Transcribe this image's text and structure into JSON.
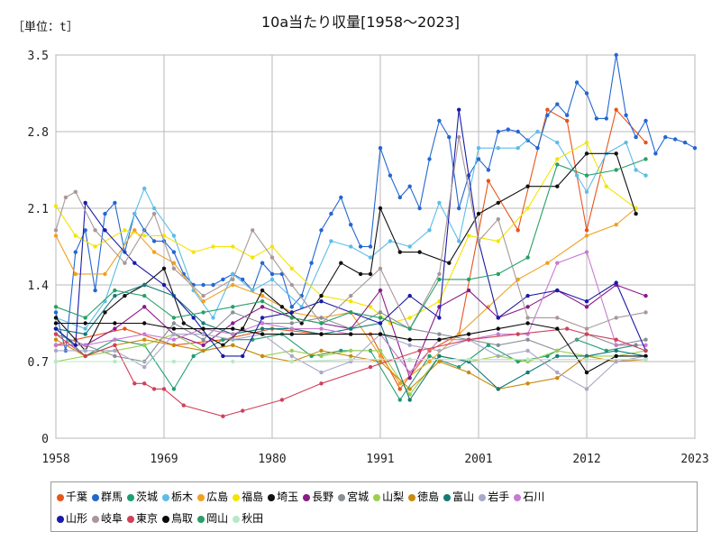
{
  "chart_data": {
    "type": "line",
    "title": "10a当たり収量[1958～2023]",
    "unit_label": "［単位：t］",
    "xlim": [
      1958,
      2023
    ],
    "ylim": [
      0,
      3.5
    ],
    "x_ticks": [
      1958,
      1969,
      1980,
      1991,
      2001,
      2012,
      2023
    ],
    "y_ticks": [
      0,
      0.7,
      1.4,
      2.1,
      2.8,
      3.5
    ],
    "y_tick_labels": [
      "0",
      "0.7",
      "1.4",
      "2.1",
      "2.8",
      "3.5"
    ],
    "grid": true,
    "legend_position": "bottom",
    "series": [
      {
        "name": "千葉",
        "color": "#e8541c",
        "x": [
          1958,
          1960,
          1965,
          1970,
          1975,
          1980,
          1985,
          1990,
          1993,
          1996,
          1999,
          2002,
          2005,
          2008,
          2010,
          2012,
          2015,
          2018
        ],
        "y": [
          0.85,
          0.9,
          1.0,
          0.85,
          0.9,
          1.0,
          0.95,
          0.95,
          0.45,
          0.8,
          0.95,
          2.35,
          1.9,
          3.0,
          2.9,
          1.9,
          3.0,
          2.7
        ]
      },
      {
        "name": "群馬",
        "color": "#2466d2",
        "x": [
          1958,
          1959,
          1960,
          1961,
          1962,
          1963,
          1964,
          1965,
          1966,
          1967,
          1968,
          1969,
          1970,
          1971,
          1972,
          1973,
          1974,
          1975,
          1976,
          1977,
          1978,
          1979,
          1980,
          1981,
          1982,
          1983,
          1984,
          1985,
          1986,
          1987,
          1988,
          1989,
          1990,
          1991,
          1992,
          1993,
          1994,
          1995,
          1996,
          1997,
          1998,
          1999,
          2000,
          2001,
          2002,
          2003,
          2004,
          2005,
          2006,
          2007,
          2008,
          2009,
          2010,
          2011,
          2012,
          2013,
          2014,
          2015,
          2016,
          2017,
          2018,
          2019,
          2020,
          2021,
          2022,
          2023
        ],
        "y": [
          1.15,
          0.8,
          1.7,
          1.9,
          1.35,
          2.05,
          2.15,
          1.7,
          2.05,
          1.9,
          1.8,
          1.8,
          1.7,
          1.5,
          1.4,
          1.4,
          1.4,
          1.45,
          1.5,
          1.45,
          1.35,
          1.6,
          1.5,
          1.5,
          1.2,
          1.3,
          1.6,
          1.9,
          2.05,
          2.2,
          1.95,
          1.75,
          1.75,
          2.65,
          2.4,
          2.2,
          2.3,
          2.1,
          2.55,
          2.9,
          2.75,
          2.1,
          2.4,
          2.55,
          2.45,
          2.8,
          2.82,
          2.8,
          2.72,
          2.65,
          2.95,
          3.05,
          2.95,
          3.25,
          3.15,
          2.92,
          2.92,
          3.5,
          2.95,
          2.75,
          2.9,
          2.6,
          2.75,
          2.73,
          2.7,
          2.65
        ]
      },
      {
        "name": "茨城",
        "color": "#1f9e72",
        "x": [
          1958,
          1961,
          1964,
          1967,
          1970,
          1972,
          1975,
          1978,
          1981,
          1984,
          1987,
          1990,
          1993,
          1996,
          1999,
          2002,
          2005,
          2008,
          2011,
          2014,
          2017
        ],
        "y": [
          1.0,
          0.75,
          0.9,
          0.85,
          0.45,
          0.75,
          0.9,
          0.9,
          0.95,
          0.75,
          0.8,
          0.8,
          0.35,
          0.75,
          0.65,
          0.85,
          0.7,
          0.75,
          0.9,
          0.8,
          0.85
        ]
      },
      {
        "name": "栃木",
        "color": "#5cbde8",
        "x": [
          1958,
          1961,
          1963,
          1966,
          1967,
          1968,
          1970,
          1972,
          1974,
          1976,
          1978,
          1980,
          1983,
          1986,
          1988,
          1990,
          1992,
          1994,
          1996,
          1997,
          1999,
          2001,
          2003,
          2005,
          2007,
          2009,
          2011,
          2012,
          2014,
          2016,
          2017,
          2018
        ],
        "y": [
          1.1,
          1.0,
          1.25,
          2.05,
          2.28,
          2.1,
          1.85,
          1.35,
          1.1,
          1.5,
          1.35,
          1.45,
          1.2,
          1.8,
          1.75,
          1.65,
          1.8,
          1.75,
          1.9,
          2.15,
          1.8,
          2.65,
          2.65,
          2.65,
          2.8,
          2.7,
          2.4,
          2.25,
          2.6,
          2.7,
          2.45,
          2.4
        ]
      },
      {
        "name": "広島",
        "color": "#f0a020",
        "x": [
          1958,
          1960,
          1963,
          1966,
          1968,
          1970,
          1973,
          1976,
          1979,
          1982,
          1985,
          1988,
          1991,
          1993,
          1996,
          1999,
          2002,
          2005,
          2008,
          2012,
          2015,
          2017
        ],
        "y": [
          1.85,
          1.5,
          1.5,
          1.9,
          1.7,
          1.6,
          1.25,
          1.4,
          1.3,
          1.15,
          1.1,
          1.15,
          0.75,
          0.5,
          0.7,
          0.95,
          1.2,
          1.45,
          1.6,
          1.85,
          1.95,
          2.1
        ]
      },
      {
        "name": "福島",
        "color": "#f5e400",
        "x": [
          1958,
          1960,
          1962,
          1965,
          1967,
          1969,
          1972,
          1974,
          1976,
          1978,
          1980,
          1982,
          1985,
          1988,
          1990,
          1992,
          1994,
          1997,
          2000,
          2003,
          2006,
          2009,
          2012,
          2014,
          2017
        ],
        "y": [
          2.12,
          1.85,
          1.75,
          1.9,
          1.85,
          1.85,
          1.7,
          1.75,
          1.75,
          1.65,
          1.75,
          1.55,
          1.3,
          1.25,
          1.2,
          1.05,
          1.1,
          1.25,
          1.85,
          1.8,
          2.1,
          2.55,
          2.7,
          2.3,
          2.1
        ]
      },
      {
        "name": "埼玉",
        "color": "#111111",
        "x": [
          1958,
          1961,
          1963,
          1965,
          1967,
          1969,
          1971,
          1973,
          1975,
          1977,
          1979,
          1981,
          1983,
          1985,
          1987,
          1989,
          1990,
          1991,
          1993,
          1995,
          1998,
          2001,
          2003,
          2006,
          2009,
          2012,
          2015,
          2017
        ],
        "y": [
          1.1,
          0.8,
          1.15,
          1.3,
          1.4,
          1.55,
          1.05,
          0.95,
          0.85,
          1.0,
          1.35,
          1.2,
          1.05,
          1.3,
          1.6,
          1.5,
          1.5,
          2.1,
          1.7,
          1.7,
          1.6,
          2.05,
          2.15,
          2.3,
          2.3,
          2.6,
          2.6,
          2.05
        ]
      },
      {
        "name": "長野",
        "color": "#8b1a8b",
        "x": [
          1958,
          1961,
          1964,
          1967,
          1970,
          1973,
          1976,
          1979,
          1982,
          1985,
          1988,
          1991,
          1994,
          1997,
          2000,
          2003,
          2006,
          2009,
          2012,
          2015,
          2018
        ],
        "y": [
          0.85,
          0.85,
          1.0,
          1.2,
          0.95,
          0.85,
          1.05,
          1.2,
          1.1,
          1.05,
          1.0,
          1.35,
          0.55,
          1.2,
          1.35,
          1.1,
          1.2,
          1.35,
          1.2,
          1.4,
          1.3
        ]
      },
      {
        "name": "宮城",
        "color": "#8a8f96",
        "x": [
          1958,
          1961,
          1964,
          1967,
          1970,
          1973,
          1976,
          1979,
          1982,
          1985,
          1988,
          1991,
          1994,
          1997,
          2000,
          2003,
          2006,
          2009,
          2012,
          2015,
          2018
        ],
        "y": [
          0.95,
          0.85,
          0.75,
          0.7,
          1.05,
          0.9,
          1.15,
          1.05,
          1.05,
          1.1,
          1.0,
          1.15,
          1.0,
          0.95,
          0.9,
          0.85,
          0.9,
          0.8,
          0.95,
          0.85,
          0.9
        ]
      },
      {
        "name": "山梨",
        "color": "#9ad04e",
        "x": [
          1958,
          1961,
          1964,
          1967,
          1970,
          1973,
          1976,
          1979,
          1982,
          1985,
          1988,
          1991,
          1994,
          1997,
          2000,
          2003,
          2006,
          2009,
          2012,
          2015,
          2018
        ],
        "y": [
          0.7,
          0.75,
          0.8,
          0.85,
          0.95,
          0.8,
          0.85,
          0.75,
          0.8,
          0.75,
          0.8,
          0.8,
          0.4,
          0.75,
          0.7,
          0.75,
          0.7,
          0.8,
          0.75,
          0.75,
          0.8
        ]
      },
      {
        "name": "徳島",
        "color": "#c98a10",
        "x": [
          1958,
          1961,
          1964,
          1967,
          1970,
          1973,
          1976,
          1979,
          1982,
          1985,
          1988,
          1991,
          1994,
          1997,
          2000,
          2003,
          2006,
          2009,
          2012,
          2015,
          2018
        ],
        "y": [
          0.9,
          0.75,
          0.85,
          0.9,
          0.85,
          0.8,
          0.85,
          0.75,
          0.7,
          0.8,
          0.75,
          0.7,
          0.45,
          0.7,
          0.6,
          0.45,
          0.5,
          0.55,
          0.75,
          0.7,
          0.72
        ]
      },
      {
        "name": "富山",
        "color": "#147a78",
        "x": [
          1958,
          1961,
          1964,
          1967,
          1970,
          1973,
          1976,
          1979,
          1982,
          1985,
          1988,
          1991,
          1994,
          1997,
          2000,
          2003,
          2006,
          2009,
          2012,
          2015,
          2018
        ],
        "y": [
          1.0,
          0.95,
          1.3,
          1.4,
          1.3,
          1.05,
          0.95,
          1.0,
          1.0,
          0.95,
          1.0,
          1.05,
          0.35,
          0.75,
          0.7,
          0.45,
          0.6,
          0.75,
          0.75,
          0.8,
          0.75
        ]
      },
      {
        "name": "岩手",
        "color": "#a8a8c8",
        "x": [
          1958,
          1961,
          1964,
          1967,
          1970,
          1973,
          1976,
          1979,
          1982,
          1985,
          1988,
          1991,
          1994,
          1997,
          2000,
          2003,
          2006,
          2009,
          2012,
          2015,
          2018
        ],
        "y": [
          0.8,
          0.8,
          0.8,
          0.65,
          0.95,
          0.95,
          0.9,
          0.95,
          0.75,
          0.6,
          0.7,
          0.95,
          0.85,
          0.8,
          0.9,
          0.75,
          0.8,
          0.6,
          0.45,
          0.7,
          0.75
        ]
      },
      {
        "name": "石川",
        "color": "#c87ad0",
        "x": [
          1958,
          1961,
          1964,
          1967,
          1970,
          1973,
          1976,
          1979,
          1982,
          1985,
          1988,
          1991,
          1994,
          1997,
          2000,
          2003,
          2006,
          2009,
          2012,
          2015,
          2018
        ],
        "y": [
          0.85,
          0.85,
          0.9,
          0.95,
          0.9,
          1.0,
          0.95,
          1.05,
          1.0,
          1.0,
          0.95,
          0.95,
          0.6,
          0.9,
          0.9,
          0.95,
          0.95,
          1.6,
          1.7,
          0.85,
          0.85
        ]
      },
      {
        "name": "山形",
        "color": "#1a1aa8",
        "x": [
          1958,
          1960,
          1961,
          1963,
          1966,
          1969,
          1972,
          1975,
          1977,
          1979,
          1982,
          1985,
          1988,
          1991,
          1994,
          1997,
          1999,
          2001,
          2003,
          2006,
          2009,
          2012,
          2015,
          2018
        ],
        "y": [
          1.0,
          0.85,
          2.15,
          1.9,
          1.6,
          1.4,
          1.1,
          0.75,
          0.75,
          1.1,
          1.15,
          1.25,
          1.15,
          1.05,
          1.3,
          1.1,
          3.0,
          1.8,
          1.1,
          1.3,
          1.35,
          1.25,
          1.42,
          0.8
        ]
      },
      {
        "name": "岐阜",
        "color": "#a89898",
        "x": [
          1958,
          1959,
          1960,
          1962,
          1965,
          1968,
          1970,
          1973,
          1976,
          1978,
          1980,
          1982,
          1985,
          1988,
          1991,
          1994,
          1997,
          1999,
          2001,
          2003,
          2006,
          2009,
          2012,
          2015,
          2018
        ],
        "y": [
          1.9,
          2.2,
          2.25,
          1.9,
          1.6,
          2.05,
          1.55,
          1.3,
          1.45,
          1.9,
          1.65,
          1.4,
          1.05,
          1.3,
          1.55,
          1.0,
          1.5,
          2.75,
          1.8,
          2.0,
          1.1,
          1.1,
          1.0,
          1.1,
          1.15
        ]
      },
      {
        "name": "東京",
        "color": "#d0405a",
        "x": [
          1958,
          1961,
          1964,
          1966,
          1967,
          1968,
          1969,
          1971,
          1975,
          1977,
          1981,
          1985,
          1990,
          1995,
          2000,
          2005,
          2010,
          2012,
          2015,
          2018
        ],
        "y": [
          0.95,
          0.75,
          0.85,
          0.5,
          0.5,
          0.45,
          0.45,
          0.3,
          0.2,
          0.25,
          0.35,
          0.5,
          0.65,
          0.8,
          0.9,
          0.95,
          1.0,
          0.95,
          0.9,
          0.8
        ]
      },
      {
        "name": "鳥取",
        "color": "#0a0a0a",
        "x": [
          1958,
          1961,
          1964,
          1967,
          1970,
          1973,
          1976,
          1979,
          1982,
          1985,
          1988,
          1991,
          1994,
          1997,
          2000,
          2003,
          2006,
          2009,
          2012,
          2015,
          2018
        ],
        "y": [
          1.05,
          1.05,
          1.05,
          1.05,
          1.0,
          1.0,
          1.0,
          0.95,
          0.95,
          0.95,
          0.95,
          0.95,
          0.9,
          0.9,
          0.95,
          1.0,
          1.05,
          1.0,
          0.6,
          0.75,
          0.75
        ]
      },
      {
        "name": "岡山",
        "color": "#28a068",
        "x": [
          1958,
          1961,
          1964,
          1967,
          1970,
          1973,
          1976,
          1979,
          1982,
          1985,
          1988,
          1991,
          1994,
          1997,
          2000,
          2003,
          2006,
          2009,
          2012,
          2015,
          2018
        ],
        "y": [
          1.2,
          1.1,
          1.35,
          1.3,
          1.1,
          1.15,
          1.2,
          1.25,
          1.1,
          1.05,
          1.15,
          1.1,
          1.0,
          1.45,
          1.45,
          1.5,
          1.65,
          2.5,
          2.4,
          2.45,
          2.55
        ]
      },
      {
        "name": "秋田",
        "color": "#b8e8c8",
        "x": [
          1958,
          1964,
          1970,
          1976,
          1982,
          1988,
          1994,
          2000,
          2006,
          2012,
          2018
        ],
        "y": [
          0.7,
          0.7,
          0.7,
          0.7,
          0.7,
          0.72,
          0.72,
          0.72,
          0.72,
          0.72,
          0.72
        ]
      }
    ]
  }
}
